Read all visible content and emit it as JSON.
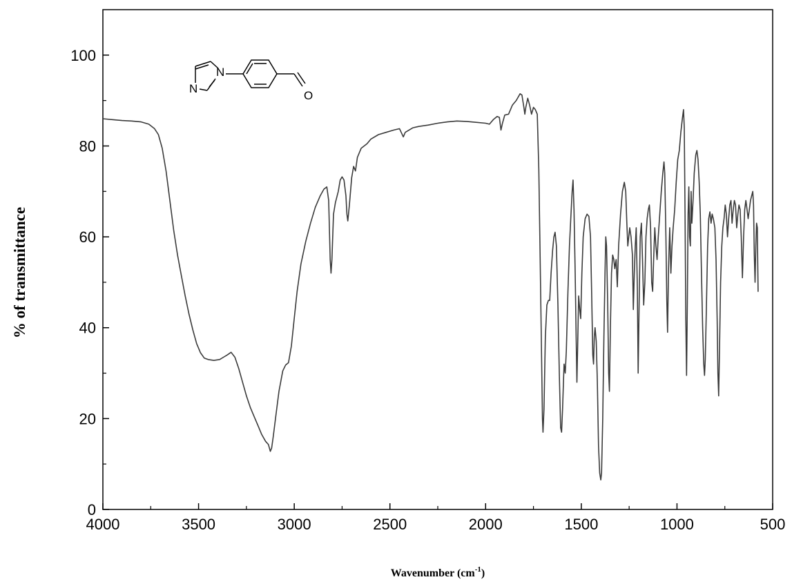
{
  "chart_data": {
    "type": "line",
    "xlabel_main": "Wavenumber (cm",
    "xlabel_sup": "-1",
    "xlabel_close": ")",
    "ylabel": "% of transmittance",
    "xlim": [
      4000,
      500
    ],
    "ylim": [
      0,
      110
    ],
    "x_reversed": true,
    "xticks": [
      4000,
      3500,
      3000,
      2500,
      2000,
      1500,
      1000,
      500
    ],
    "yticks": [
      0,
      20,
      40,
      60,
      80,
      100
    ],
    "grid": false,
    "series": [
      {
        "line_color": "#3a3a3a",
        "points": [
          [
            4000,
            86.0
          ],
          [
            3950,
            85.8
          ],
          [
            3900,
            85.6
          ],
          [
            3850,
            85.5
          ],
          [
            3800,
            85.3
          ],
          [
            3760,
            84.8
          ],
          [
            3730,
            83.8
          ],
          [
            3710,
            82.5
          ],
          [
            3690,
            79.5
          ],
          [
            3670,
            74.5
          ],
          [
            3650,
            68
          ],
          [
            3630,
            61.5
          ],
          [
            3610,
            56
          ],
          [
            3590,
            51.5
          ],
          [
            3570,
            47
          ],
          [
            3550,
            43
          ],
          [
            3530,
            39.5
          ],
          [
            3510,
            36.5
          ],
          [
            3490,
            34.5
          ],
          [
            3470,
            33.3
          ],
          [
            3450,
            33
          ],
          [
            3420,
            32.8
          ],
          [
            3390,
            33
          ],
          [
            3370,
            33.5
          ],
          [
            3350,
            34
          ],
          [
            3330,
            34.6
          ],
          [
            3310,
            33.5
          ],
          [
            3290,
            31
          ],
          [
            3270,
            28
          ],
          [
            3250,
            25
          ],
          [
            3230,
            22.5
          ],
          [
            3210,
            20.5
          ],
          [
            3190,
            18.5
          ],
          [
            3170,
            16.5
          ],
          [
            3150,
            15
          ],
          [
            3135,
            14.3
          ],
          [
            3125,
            12.8
          ],
          [
            3118,
            13.5
          ],
          [
            3110,
            16
          ],
          [
            3095,
            21
          ],
          [
            3080,
            26
          ],
          [
            3060,
            30.5
          ],
          [
            3045,
            31.8
          ],
          [
            3030,
            32.3
          ],
          [
            3015,
            36
          ],
          [
            3000,
            42
          ],
          [
            2985,
            48
          ],
          [
            2965,
            54
          ],
          [
            2940,
            59
          ],
          [
            2915,
            63
          ],
          [
            2890,
            66.5
          ],
          [
            2865,
            69
          ],
          [
            2845,
            70.5
          ],
          [
            2830,
            71
          ],
          [
            2820,
            68
          ],
          [
            2812,
            55
          ],
          [
            2808,
            52
          ],
          [
            2803,
            55
          ],
          [
            2795,
            65
          ],
          [
            2785,
            67.5
          ],
          [
            2770,
            70
          ],
          [
            2760,
            72.5
          ],
          [
            2750,
            73.2
          ],
          [
            2740,
            72.5
          ],
          [
            2730,
            69
          ],
          [
            2725,
            65
          ],
          [
            2720,
            63.5
          ],
          [
            2712,
            67
          ],
          [
            2700,
            73
          ],
          [
            2690,
            75.5
          ],
          [
            2680,
            74.5
          ],
          [
            2670,
            77.5
          ],
          [
            2650,
            79.5
          ],
          [
            2620,
            80.5
          ],
          [
            2600,
            81.5
          ],
          [
            2560,
            82.5
          ],
          [
            2520,
            83
          ],
          [
            2480,
            83.5
          ],
          [
            2450,
            83.8
          ],
          [
            2430,
            82
          ],
          [
            2420,
            83
          ],
          [
            2380,
            84
          ],
          [
            2350,
            84.3
          ],
          [
            2300,
            84.6
          ],
          [
            2250,
            85
          ],
          [
            2200,
            85.3
          ],
          [
            2150,
            85.5
          ],
          [
            2100,
            85.4
          ],
          [
            2050,
            85.2
          ],
          [
            2000,
            85
          ],
          [
            1980,
            84.8
          ],
          [
            1960,
            85.8
          ],
          [
            1940,
            86.5
          ],
          [
            1928,
            86.3
          ],
          [
            1920,
            83.5
          ],
          [
            1912,
            85
          ],
          [
            1900,
            86.8
          ],
          [
            1880,
            87
          ],
          [
            1860,
            89
          ],
          [
            1840,
            90
          ],
          [
            1820,
            91.5
          ],
          [
            1810,
            91.2
          ],
          [
            1800,
            88.5
          ],
          [
            1795,
            87
          ],
          [
            1790,
            88.5
          ],
          [
            1780,
            90.5
          ],
          [
            1770,
            89
          ],
          [
            1760,
            87
          ],
          [
            1750,
            88.5
          ],
          [
            1740,
            88
          ],
          [
            1730,
            87
          ],
          [
            1722,
            75
          ],
          [
            1715,
            55
          ],
          [
            1708,
            35
          ],
          [
            1703,
            20
          ],
          [
            1700,
            17
          ],
          [
            1695,
            22
          ],
          [
            1688,
            38
          ],
          [
            1680,
            45
          ],
          [
            1672,
            46
          ],
          [
            1665,
            46
          ],
          [
            1658,
            52
          ],
          [
            1650,
            57
          ],
          [
            1643,
            60
          ],
          [
            1637,
            61
          ],
          [
            1630,
            58
          ],
          [
            1622,
            45
          ],
          [
            1615,
            30
          ],
          [
            1608,
            18
          ],
          [
            1603,
            17
          ],
          [
            1598,
            22
          ],
          [
            1590,
            32
          ],
          [
            1584,
            30
          ],
          [
            1578,
            35
          ],
          [
            1570,
            48
          ],
          [
            1562,
            58
          ],
          [
            1555,
            64
          ],
          [
            1548,
            70
          ],
          [
            1543,
            72.5
          ],
          [
            1538,
            66
          ],
          [
            1532,
            52
          ],
          [
            1527,
            38
          ],
          [
            1523,
            28
          ],
          [
            1519,
            36
          ],
          [
            1514,
            47
          ],
          [
            1508,
            44
          ],
          [
            1503,
            42
          ],
          [
            1497,
            52
          ],
          [
            1490,
            60
          ],
          [
            1480,
            64
          ],
          [
            1470,
            65
          ],
          [
            1460,
            64.5
          ],
          [
            1452,
            60
          ],
          [
            1446,
            48
          ],
          [
            1440,
            34
          ],
          [
            1436,
            32
          ],
          [
            1432,
            38
          ],
          [
            1428,
            40
          ],
          [
            1422,
            37
          ],
          [
            1416,
            28
          ],
          [
            1410,
            14
          ],
          [
            1404,
            8
          ],
          [
            1398,
            6.5
          ],
          [
            1394,
            8
          ],
          [
            1388,
            20
          ],
          [
            1382,
            38
          ],
          [
            1376,
            52
          ],
          [
            1372,
            60
          ],
          [
            1368,
            58
          ],
          [
            1362,
            45
          ],
          [
            1357,
            30
          ],
          [
            1353,
            26
          ],
          [
            1348,
            40
          ],
          [
            1342,
            52
          ],
          [
            1336,
            56
          ],
          [
            1330,
            55
          ],
          [
            1325,
            53
          ],
          [
            1318,
            55
          ],
          [
            1312,
            49
          ],
          [
            1305,
            58
          ],
          [
            1295,
            65
          ],
          [
            1285,
            70
          ],
          [
            1275,
            72
          ],
          [
            1268,
            70
          ],
          [
            1262,
            63
          ],
          [
            1257,
            58
          ],
          [
            1252,
            60
          ],
          [
            1247,
            62
          ],
          [
            1240,
            60
          ],
          [
            1233,
            56
          ],
          [
            1228,
            44
          ],
          [
            1223,
            52
          ],
          [
            1218,
            58
          ],
          [
            1213,
            62
          ],
          [
            1207,
            48
          ],
          [
            1203,
            30
          ],
          [
            1198,
            45
          ],
          [
            1192,
            60
          ],
          [
            1186,
            63
          ],
          [
            1180,
            55
          ],
          [
            1174,
            45
          ],
          [
            1168,
            50
          ],
          [
            1162,
            60
          ],
          [
            1156,
            64
          ],
          [
            1150,
            66
          ],
          [
            1144,
            67
          ],
          [
            1138,
            62
          ],
          [
            1132,
            50
          ],
          [
            1127,
            48
          ],
          [
            1122,
            55
          ],
          [
            1116,
            62
          ],
          [
            1110,
            58
          ],
          [
            1104,
            55
          ],
          [
            1098,
            60
          ],
          [
            1090,
            65
          ],
          [
            1082,
            70
          ],
          [
            1074,
            74
          ],
          [
            1068,
            76.5
          ],
          [
            1064,
            74
          ],
          [
            1058,
            60
          ],
          [
            1053,
            46
          ],
          [
            1049,
            39
          ],
          [
            1044,
            53
          ],
          [
            1038,
            62
          ],
          [
            1032,
            52
          ],
          [
            1026,
            58
          ],
          [
            1020,
            62
          ],
          [
            1012,
            66
          ],
          [
            1004,
            72
          ],
          [
            996,
            77
          ],
          [
            988,
            79
          ],
          [
            980,
            83
          ],
          [
            972,
            86
          ],
          [
            966,
            88
          ],
          [
            962,
            84
          ],
          [
            958,
            65
          ],
          [
            954,
            42
          ],
          [
            950,
            29.5
          ],
          [
            946,
            45
          ],
          [
            942,
            65
          ],
          [
            938,
            71
          ],
          [
            934,
            60
          ],
          [
            930,
            58
          ],
          [
            926,
            70
          ],
          [
            922,
            63
          ],
          [
            916,
            68
          ],
          [
            910,
            74
          ],
          [
            902,
            78
          ],
          [
            896,
            79
          ],
          [
            890,
            77
          ],
          [
            884,
            72
          ],
          [
            878,
            65
          ],
          [
            872,
            52
          ],
          [
            866,
            40
          ],
          [
            860,
            32
          ],
          [
            856,
            29.5
          ],
          [
            852,
            33
          ],
          [
            846,
            45
          ],
          [
            840,
            58
          ],
          [
            834,
            64
          ],
          [
            828,
            65.5
          ],
          [
            822,
            63
          ],
          [
            816,
            65
          ],
          [
            810,
            64
          ],
          [
            802,
            62
          ],
          [
            796,
            55
          ],
          [
            790,
            42
          ],
          [
            786,
            30
          ],
          [
            782,
            25
          ],
          [
            778,
            35
          ],
          [
            772,
            50
          ],
          [
            766,
            58
          ],
          [
            760,
            62
          ],
          [
            754,
            64
          ],
          [
            748,
            67
          ],
          [
            742,
            65
          ],
          [
            736,
            60
          ],
          [
            730,
            64
          ],
          [
            724,
            67
          ],
          [
            718,
            68
          ],
          [
            712,
            63
          ],
          [
            706,
            66
          ],
          [
            700,
            68
          ],
          [
            694,
            67
          ],
          [
            688,
            62
          ],
          [
            682,
            65
          ],
          [
            676,
            67
          ],
          [
            670,
            66
          ],
          [
            664,
            60
          ],
          [
            658,
            51
          ],
          [
            652,
            60
          ],
          [
            646,
            66
          ],
          [
            640,
            68
          ],
          [
            634,
            66
          ],
          [
            628,
            64
          ],
          [
            622,
            66
          ],
          [
            616,
            68
          ],
          [
            610,
            69
          ],
          [
            604,
            70
          ],
          [
            600,
            67
          ],
          [
            596,
            56
          ],
          [
            592,
            50
          ],
          [
            588,
            58
          ],
          [
            584,
            63
          ],
          [
            580,
            62
          ],
          [
            578,
            54
          ],
          [
            576,
            48
          ],
          [
            574,
            48
          ]
        ]
      }
    ]
  }
}
